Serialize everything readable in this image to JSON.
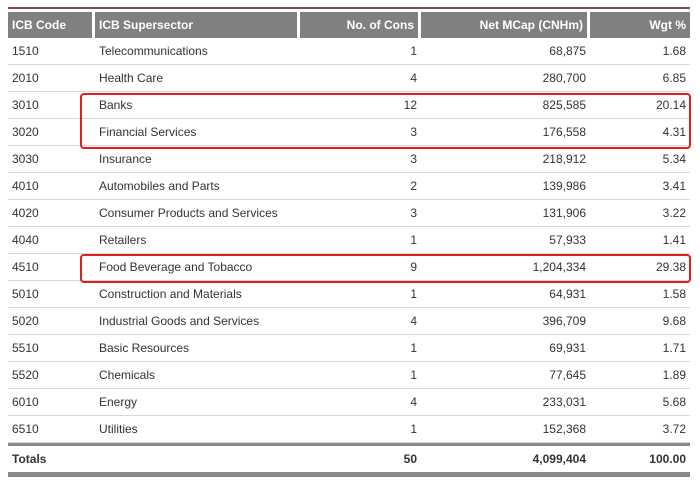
{
  "headers": [
    "ICB Code",
    "ICB Supersector",
    "No. of Cons",
    "Net MCap (CNHm)",
    "Wgt %"
  ],
  "rows": [
    [
      "1510",
      "Telecommunications",
      "1",
      "68,875",
      "1.68"
    ],
    [
      "2010",
      "Health Care",
      "4",
      "280,700",
      "6.85"
    ],
    [
      "3010",
      "Banks",
      "12",
      "825,585",
      "20.14"
    ],
    [
      "3020",
      "Financial Services",
      "3",
      "176,558",
      "4.31"
    ],
    [
      "3030",
      "Insurance",
      "3",
      "218,912",
      "5.34"
    ],
    [
      "4010",
      "Automobiles and Parts",
      "2",
      "139,986",
      "3.41"
    ],
    [
      "4020",
      "Consumer Products and Services",
      "3",
      "131,906",
      "3.22"
    ],
    [
      "4040",
      "Retailers",
      "1",
      "57,933",
      "1.41"
    ],
    [
      "4510",
      "Food Beverage and Tobacco",
      "9",
      "1,204,334",
      "29.38"
    ],
    [
      "5010",
      "Construction and Materials",
      "1",
      "64,931",
      "1.58"
    ],
    [
      "5020",
      "Industrial Goods and Services",
      "4",
      "396,709",
      "9.68"
    ],
    [
      "5510",
      "Basic Resources",
      "1",
      "69,931",
      "1.71"
    ],
    [
      "5520",
      "Chemicals",
      "1",
      "77,645",
      "1.89"
    ],
    [
      "6010",
      "Energy",
      "4",
      "233,031",
      "5.68"
    ],
    [
      "6510",
      "Utilities",
      "1",
      "152,368",
      "3.72"
    ]
  ],
  "totals": [
    "Totals",
    "",
    "50",
    "4,099,404",
    "100.00"
  ],
  "highlight_color": "#e0201b",
  "header_color": "#808080"
}
